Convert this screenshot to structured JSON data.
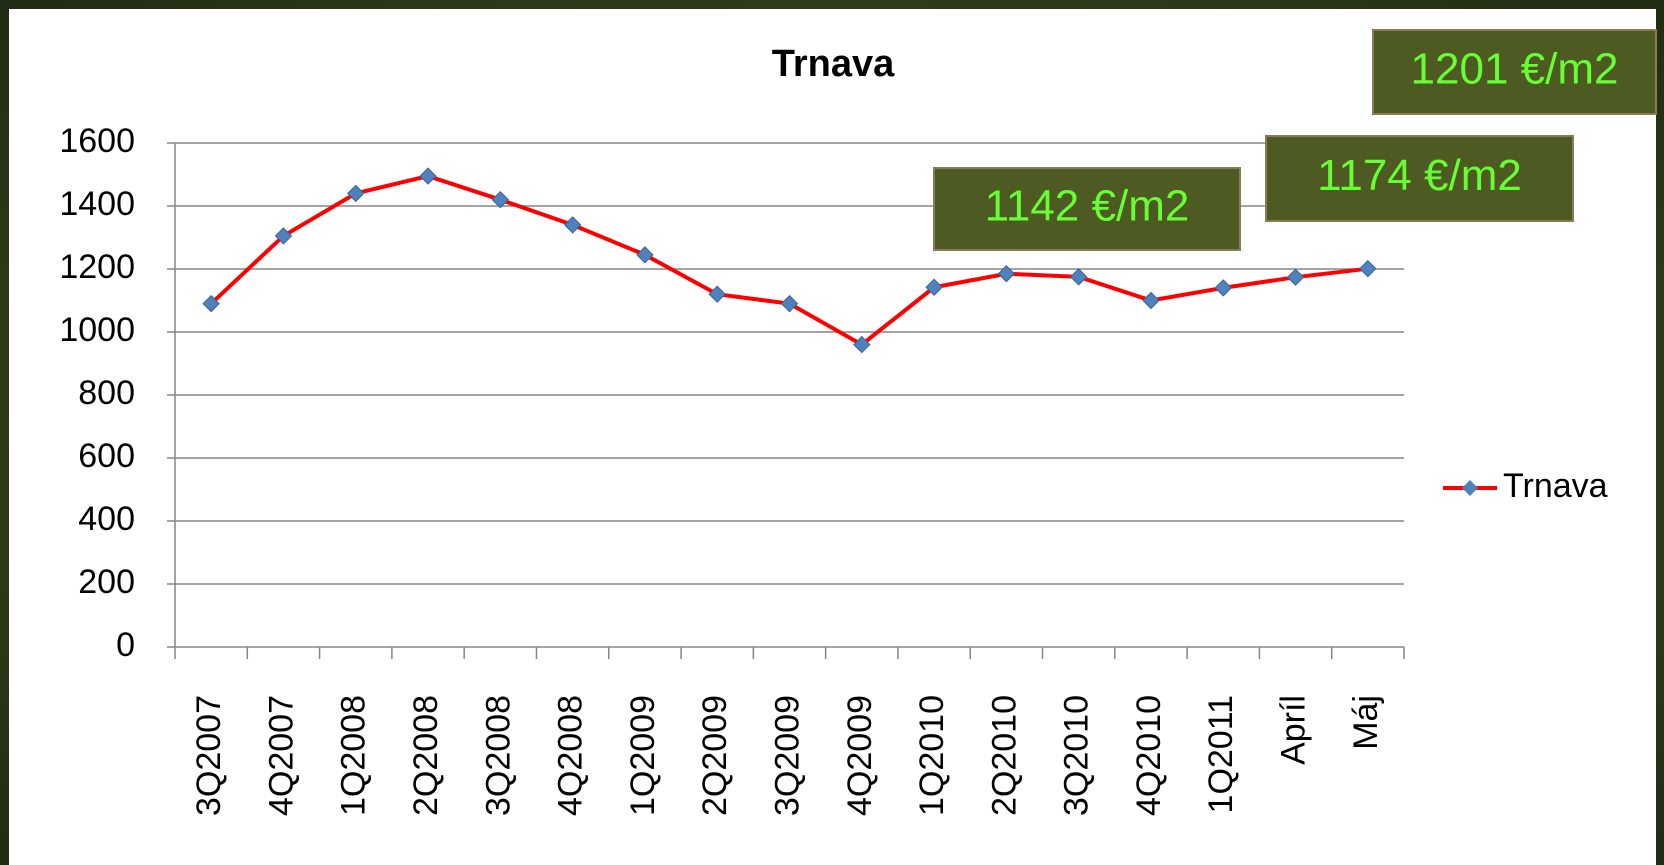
{
  "chart_data": {
    "type": "line",
    "title": "Trnava",
    "categories": [
      "3Q2007",
      "4Q2007",
      "1Q2008",
      "2Q2008",
      "3Q2008",
      "4Q2008",
      "1Q2009",
      "2Q2009",
      "3Q2009",
      "4Q2009",
      "1Q2010",
      "2Q2010",
      "3Q2010",
      "4Q2010",
      "1Q2011",
      "Apríl",
      "Máj"
    ],
    "series": [
      {
        "name": "Trnava",
        "color": "#ff0000",
        "marker_color": "#4f81bd",
        "values": [
          1090,
          1305,
          1440,
          1495,
          1420,
          1340,
          1245,
          1120,
          1090,
          960,
          1142,
          1185,
          1175,
          1100,
          1140,
          1174,
          1201
        ]
      }
    ],
    "ylim": [
      0,
      1600
    ],
    "yticks": [
      0,
      200,
      400,
      600,
      800,
      1000,
      1200,
      1400,
      1600
    ],
    "grid": true,
    "legend": "right",
    "annotations": [
      "1142 €/m2",
      "1174 €/m2",
      "1201 €/m2"
    ]
  }
}
